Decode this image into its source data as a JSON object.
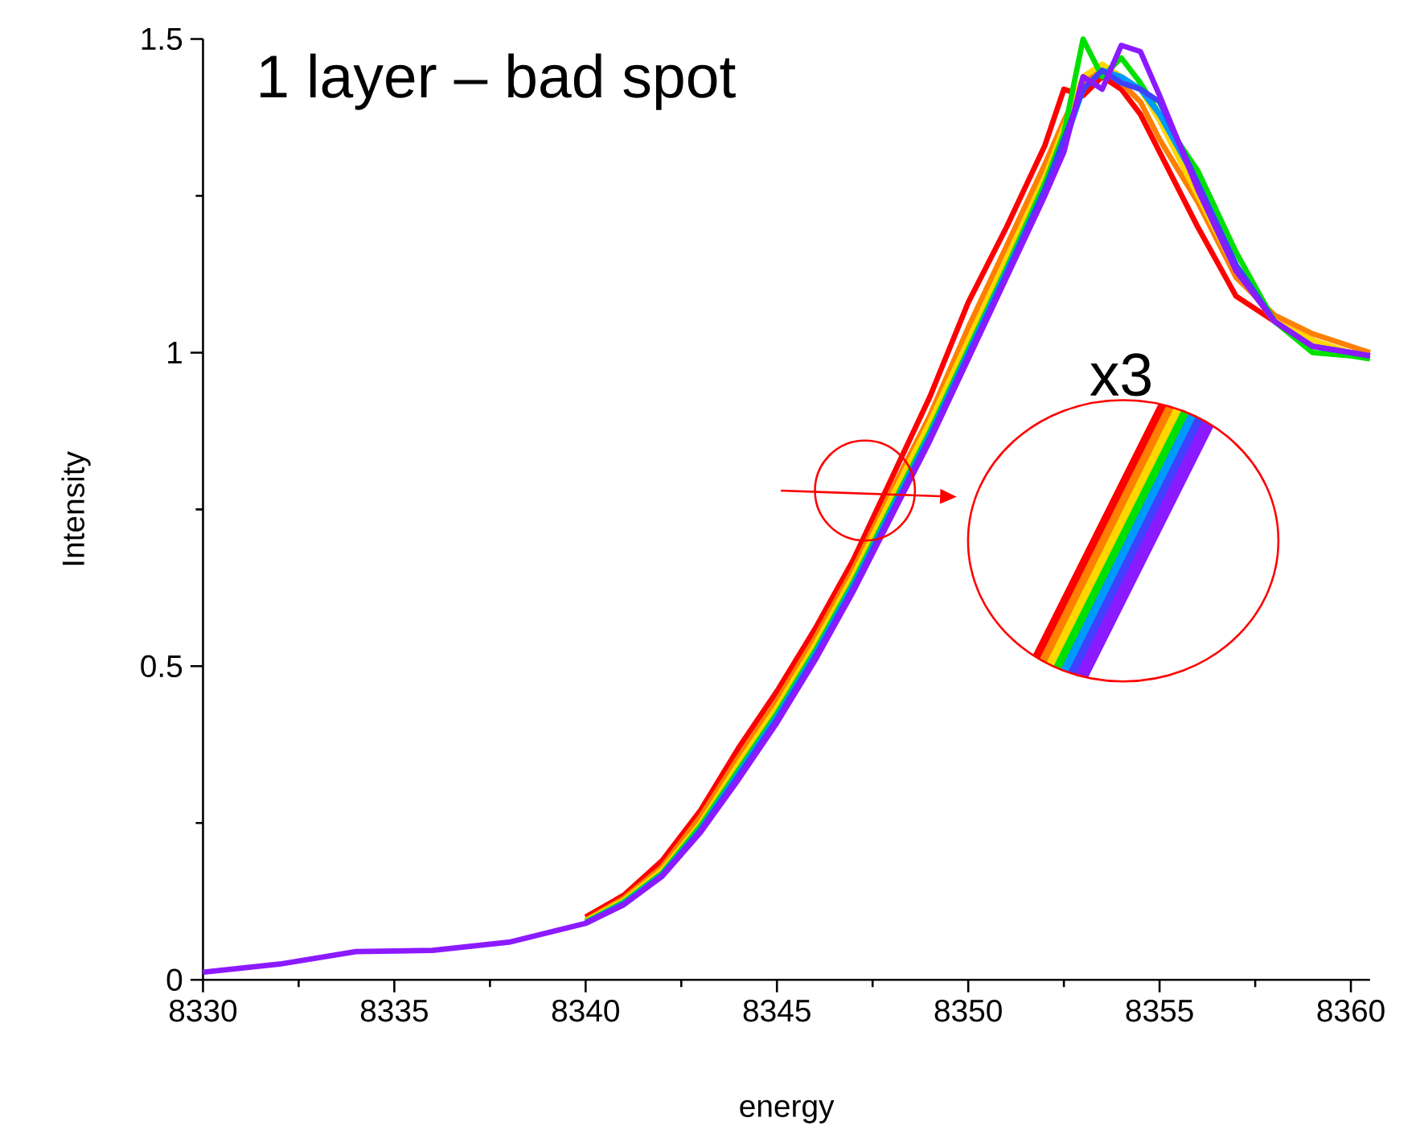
{
  "chart_data": {
    "type": "line",
    "title": "1 layer – bad spot",
    "xlabel": "energy",
    "ylabel": "Intensity",
    "annotations": [
      "x3"
    ],
    "x": [
      8330,
      8332,
      8334,
      8336,
      8338,
      8340,
      8341,
      8342,
      8343,
      8344,
      8345,
      8346,
      8347,
      8348,
      8349,
      8350,
      8351,
      8352,
      8352.5,
      8353,
      8353.5,
      8354,
      8354.5,
      8355,
      8356,
      8357,
      8358,
      8359,
      8360,
      8360.5
    ],
    "series": [
      {
        "color": "#ff0000",
        "values": [
          null,
          null,
          null,
          null,
          null,
          0.1,
          0.135,
          0.19,
          0.27,
          0.37,
          0.46,
          0.56,
          0.67,
          0.8,
          0.93,
          1.08,
          1.2,
          1.33,
          1.42,
          1.41,
          1.44,
          1.42,
          1.38,
          1.32,
          1.2,
          1.09,
          1.05,
          1.02,
          null,
          null
        ]
      },
      {
        "color": "#ff7f00",
        "values": [
          null,
          null,
          null,
          null,
          null,
          0.095,
          0.13,
          0.18,
          0.26,
          0.355,
          0.445,
          0.545,
          0.655,
          0.78,
          0.9,
          1.04,
          1.17,
          1.3,
          1.37,
          1.43,
          1.45,
          1.43,
          1.4,
          1.34,
          1.24,
          1.12,
          1.06,
          1.03,
          1.01,
          1.0
        ]
      },
      {
        "color": "#ffd700",
        "values": [
          null,
          null,
          null,
          null,
          null,
          0.094,
          0.127,
          0.175,
          0.25,
          0.345,
          0.435,
          0.535,
          0.645,
          0.77,
          0.89,
          1.02,
          1.15,
          1.28,
          1.36,
          1.44,
          1.46,
          1.44,
          1.42,
          1.37,
          1.25,
          1.13,
          1.05,
          1.02,
          1.0,
          0.995
        ]
      },
      {
        "color": "#00e000",
        "values": [
          null,
          null,
          null,
          null,
          null,
          0.092,
          0.124,
          0.17,
          0.245,
          0.335,
          0.425,
          0.525,
          0.635,
          0.755,
          0.875,
          1.005,
          1.135,
          1.27,
          1.35,
          1.5,
          1.44,
          1.47,
          1.43,
          1.38,
          1.29,
          1.16,
          1.05,
          1.0,
          0.995,
          0.99
        ]
      },
      {
        "color": "#0099ff",
        "values": [
          null,
          null,
          null,
          null,
          null,
          0.091,
          0.122,
          0.168,
          0.24,
          0.33,
          0.42,
          0.52,
          0.63,
          0.75,
          0.87,
          1.0,
          1.13,
          1.26,
          1.33,
          1.42,
          1.45,
          1.44,
          1.42,
          1.38,
          1.27,
          1.14,
          null,
          null,
          null,
          null
        ]
      },
      {
        "color": "#4040ff",
        "values": [
          null,
          null,
          null,
          null,
          null,
          0.09,
          0.12,
          0.166,
          0.238,
          0.325,
          0.415,
          0.515,
          0.625,
          0.745,
          0.865,
          0.995,
          1.125,
          1.26,
          1.34,
          1.42,
          1.45,
          1.43,
          1.42,
          1.4,
          1.27,
          1.14,
          1.05,
          1.01,
          1.0,
          0.995
        ]
      },
      {
        "color": "#8c1aff",
        "values": [
          0.012,
          0.025,
          0.045,
          0.047,
          0.06,
          0.09,
          0.12,
          0.165,
          0.235,
          0.32,
          0.41,
          0.51,
          0.62,
          0.74,
          0.86,
          0.99,
          1.12,
          1.25,
          1.32,
          1.44,
          1.42,
          1.49,
          1.48,
          1.41,
          1.26,
          1.13,
          1.05,
          1.01,
          1.0,
          0.995
        ]
      }
    ],
    "xlim": [
      8330,
      8360.5
    ],
    "ylim": [
      0,
      1.5
    ],
    "xticks": [
      8330,
      8335,
      8340,
      8345,
      8350,
      8355,
      8360
    ],
    "yticks": [
      0,
      0.5,
      1,
      1.5
    ],
    "grid": false,
    "marker": "none",
    "line_style": "solid"
  }
}
